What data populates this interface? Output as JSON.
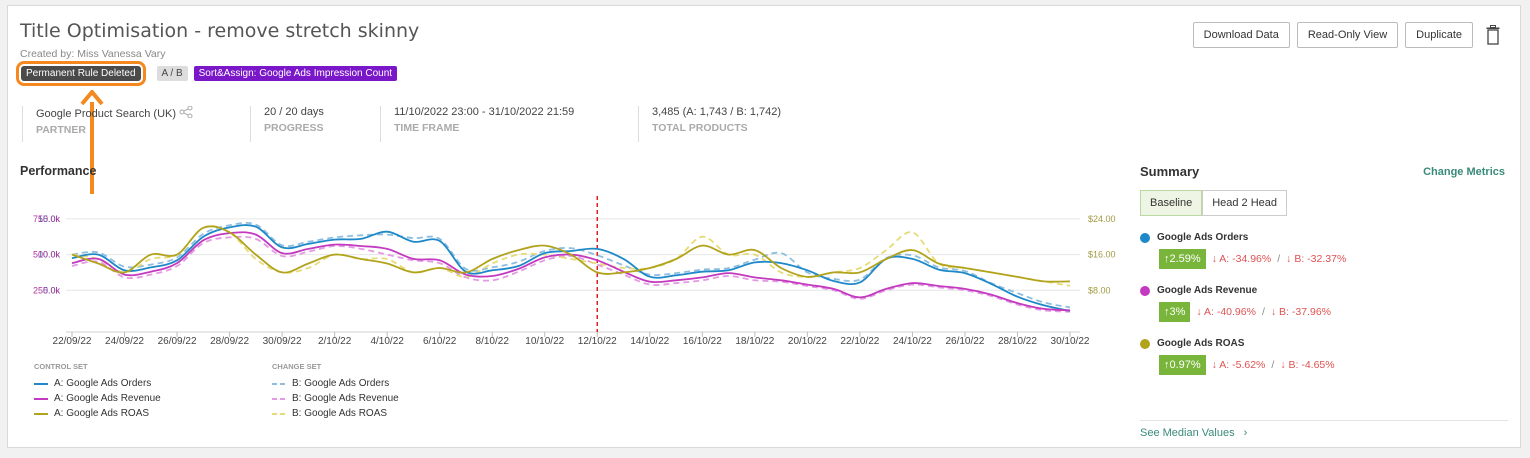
{
  "header": {
    "title": "Title Optimisation - remove stretch skinny",
    "created_by": "Created by: Miss Vanessa Vary",
    "tags": {
      "deleted": "Permanent Rule Deleted",
      "ab": "A / B",
      "sort_assign": "Sort&Assign: Google Ads Impression Count"
    }
  },
  "actions": {
    "download": "Download Data",
    "readonly": "Read-Only View",
    "duplicate": "Duplicate"
  },
  "info": {
    "partner_value": "Google Product Search (UK)",
    "partner_label": "PARTNER",
    "progress_value": "20 / 20 days",
    "progress_label": "PROGRESS",
    "timeframe_value": "11/10/2022 23:00 - 31/10/2022 21:59",
    "timeframe_label": "TIME FRAME",
    "products_value": "3,485 (A: 1,743 / B: 1,742)",
    "products_label": "TOTAL PRODUCTS"
  },
  "performance": {
    "title": "Performance",
    "legend": {
      "control_heading": "CONTROL SET",
      "change_heading": "CHANGE SET",
      "control": [
        "A: Google Ads Orders",
        "A: Google Ads Revenue",
        "A: Google Ads ROAS"
      ],
      "change": [
        "B: Google Ads Orders",
        "B: Google Ads Revenue",
        "B: Google Ads ROAS"
      ]
    }
  },
  "chart_data": {
    "type": "line",
    "x": [
      "22/09/22",
      "23/09/22",
      "24/09/22",
      "25/09/22",
      "26/09/22",
      "27/09/22",
      "28/09/22",
      "29/09/22",
      "30/09/22",
      "1/10/22",
      "2/10/22",
      "3/10/22",
      "4/10/22",
      "5/10/22",
      "6/10/22",
      "7/10/22",
      "8/10/22",
      "9/10/22",
      "10/10/22",
      "11/10/22",
      "12/10/22",
      "13/10/22",
      "14/10/22",
      "15/10/22",
      "16/10/22",
      "17/10/22",
      "18/10/22",
      "19/10/22",
      "20/10/22",
      "21/10/22",
      "22/10/22",
      "23/10/22",
      "24/10/22",
      "25/10/22",
      "26/10/22",
      "27/10/22",
      "28/10/22",
      "29/10/22",
      "30/10/22"
    ],
    "x_tick_labels": [
      "22/09/22",
      "24/09/22",
      "26/09/22",
      "28/09/22",
      "30/09/22",
      "2/10/22",
      "4/10/22",
      "6/10/22",
      "8/10/22",
      "10/10/22",
      "12/10/22",
      "14/10/22",
      "16/10/22",
      "18/10/22",
      "20/10/22",
      "22/10/22",
      "24/10/22",
      "26/10/22",
      "28/10/22",
      "30/10/22"
    ],
    "y_left_orders_ticks": [
      "15.0k",
      "10.0k",
      "5.0k"
    ],
    "y_left_revenue_ticks": [
      "750.0k",
      "500.0k",
      "250.0k"
    ],
    "y_right_roas_ticks": [
      "$24.00",
      "$16.00",
      "$8.00"
    ],
    "orders_range": [
      0,
      17500
    ],
    "revenue_range": [
      0,
      875000
    ],
    "roas_range": [
      0,
      28
    ],
    "marker_date": "12/10/22",
    "series": [
      {
        "name": "A: Google Ads Orders",
        "axis": "orders",
        "color": "#1e88c8",
        "dash": false,
        "values": [
          9500,
          10000,
          7800,
          8200,
          9200,
          12500,
          13800,
          13900,
          11000,
          11500,
          12100,
          12200,
          13200,
          11800,
          11900,
          7600,
          7800,
          8400,
          10200,
          10500,
          10800,
          9400,
          6900,
          7100,
          7600,
          7800,
          8900,
          8800,
          7800,
          6300,
          6100,
          9400,
          9400,
          7900,
          7400,
          5900,
          4100,
          2900,
          2100
        ]
      },
      {
        "name": "A: Google Ads Revenue",
        "axis": "revenue",
        "color": "#c339c0",
        "dash": false,
        "values": [
          440000,
          470000,
          360000,
          380000,
          440000,
          600000,
          650000,
          640000,
          510000,
          540000,
          570000,
          560000,
          540000,
          470000,
          460000,
          360000,
          350000,
          400000,
          480000,
          500000,
          460000,
          380000,
          310000,
          320000,
          340000,
          370000,
          340000,
          320000,
          290000,
          260000,
          200000,
          260000,
          300000,
          280000,
          260000,
          220000,
          160000,
          120000,
          110000
        ]
      },
      {
        "name": "A: Google Ads ROAS",
        "axis": "roas",
        "color": "#b2a31c",
        "dash": false,
        "values": [
          16,
          14,
          12,
          16,
          16,
          22,
          21,
          16,
          12,
          14,
          16,
          15,
          14,
          12,
          13,
          12,
          15,
          17,
          18,
          16,
          12,
          12,
          13,
          15,
          18,
          16,
          17,
          13,
          11,
          12,
          12,
          15,
          17,
          14,
          13,
          12,
          11,
          10,
          10
        ]
      },
      {
        "name": "B: Google Ads Orders",
        "axis": "orders",
        "color": "#8ebedf",
        "dash": true,
        "values": [
          10000,
          10300,
          8300,
          8600,
          9600,
          12900,
          14100,
          14200,
          11300,
          11800,
          12400,
          12700,
          12800,
          12300,
          12200,
          8000,
          8200,
          9000,
          10500,
          10900,
          9900,
          8500,
          7200,
          7400,
          7900,
          8100,
          9300,
          10200,
          7500,
          6600,
          6500,
          9500,
          9900,
          8200,
          7700,
          6000,
          4600,
          3300,
          2600
        ]
      },
      {
        "name": "B: Google Ads Revenue",
        "axis": "revenue",
        "color": "#e39ae2",
        "dash": true,
        "values": [
          420000,
          450000,
          340000,
          360000,
          420000,
          580000,
          620000,
          610000,
          490000,
          520000,
          560000,
          540000,
          500000,
          460000,
          440000,
          340000,
          320000,
          380000,
          460000,
          490000,
          430000,
          360000,
          290000,
          300000,
          320000,
          350000,
          320000,
          310000,
          280000,
          250000,
          190000,
          250000,
          290000,
          270000,
          250000,
          210000,
          150000,
          110000,
          100000
        ]
      },
      {
        "name": "B: Google Ads ROAS",
        "axis": "roas",
        "color": "#e6db76",
        "dash": true,
        "values": [
          16,
          15,
          12,
          15,
          16,
          22,
          21,
          15,
          12,
          13,
          16,
          15,
          15,
          12,
          13,
          11,
          14,
          16,
          16,
          15,
          14,
          13,
          13,
          15,
          20,
          16,
          16,
          12,
          11,
          12,
          13,
          17,
          21,
          14,
          13,
          12,
          11,
          10,
          9
        ]
      }
    ]
  },
  "summary": {
    "title": "Summary",
    "change_metrics": "Change Metrics",
    "tabs": [
      "Baseline",
      "Head 2 Head"
    ],
    "metrics": [
      {
        "name": "Google Ads Orders",
        "color": "#1e88c8",
        "uplift": "↑2.59%",
        "a": "↓ A: -34.96%",
        "b": "↓ B: -32.37%"
      },
      {
        "name": "Google Ads Revenue",
        "color": "#c339c0",
        "uplift": "↑3%",
        "a": "↓ A: -40.96%",
        "b": "↓ B: -37.96%"
      },
      {
        "name": "Google Ads ROAS",
        "color": "#b2a31c",
        "uplift": "↑0.97%",
        "a": "↓ A: -5.62%",
        "b": "↓ B: -4.65%"
      }
    ],
    "separator": "/",
    "see_median": "See Median Values"
  }
}
